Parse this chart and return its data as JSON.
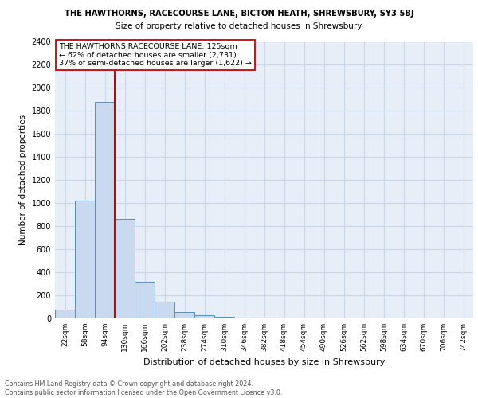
{
  "title1": "THE HAWTHORNS, RACECOURSE LANE, BICTON HEATH, SHREWSBURY, SY3 5BJ",
  "title2": "Size of property relative to detached houses in Shrewsbury",
  "xlabel": "Distribution of detached houses by size in Shrewsbury",
  "ylabel": "Number of detached properties",
  "footer": "Contains HM Land Registry data © Crown copyright and database right 2024.\nContains public sector information licensed under the Open Government Licence v3.0.",
  "bins": [
    "22sqm",
    "58sqm",
    "94sqm",
    "130sqm",
    "166sqm",
    "202sqm",
    "238sqm",
    "274sqm",
    "310sqm",
    "346sqm",
    "382sqm",
    "418sqm",
    "454sqm",
    "490sqm",
    "526sqm",
    "562sqm",
    "598sqm",
    "634sqm",
    "670sqm",
    "706sqm",
    "742sqm"
  ],
  "values": [
    75,
    1020,
    1880,
    860,
    320,
    145,
    55,
    30,
    15,
    8,
    5,
    3,
    0,
    0,
    0,
    0,
    0,
    0,
    0,
    0,
    0
  ],
  "bar_color": "#c9d9ef",
  "bar_edge_color": "#5b8db8",
  "highlight_after_index": 2,
  "highlight_color": "#cc0000",
  "ylim": [
    0,
    2400
  ],
  "yticks": [
    0,
    200,
    400,
    600,
    800,
    1000,
    1200,
    1400,
    1600,
    1800,
    2000,
    2200,
    2400
  ],
  "annotation_line1": "THE HAWTHORNS RACECOURSE LANE: 125sqm",
  "annotation_line2": "← 62% of detached houses are smaller (2,731)",
  "annotation_line3": "37% of semi-detached houses are larger (1,622) →",
  "annotation_box_edge": "#cc0000",
  "grid_color": "#c8d8e8",
  "bg_color": "#e8eef8",
  "footer_color": "#555555"
}
